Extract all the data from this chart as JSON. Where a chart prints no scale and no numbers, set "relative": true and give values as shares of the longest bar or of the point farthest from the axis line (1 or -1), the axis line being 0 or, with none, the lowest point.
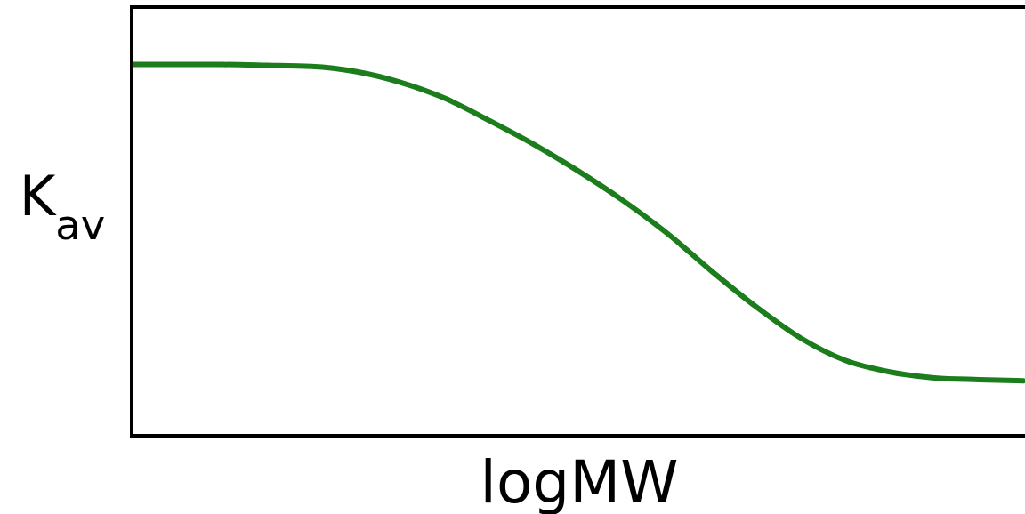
{
  "chart_data": {
    "type": "line",
    "relative": true,
    "xlabel": "logMW",
    "ylabel": "K$_{av}$",
    "categories": [
      null,
      null,
      null,
      null,
      null,
      null,
      null,
      null,
      null,
      null,
      null,
      null,
      null,
      null,
      null,
      null,
      null,
      null,
      null,
      null,
      null
    ],
    "series": [
      {
        "color": "#1b7d1b",
        "values": [
          1.0,
          1.0,
          1.0,
          0.998,
          0.995,
          0.981,
          0.952,
          0.909,
          0.849,
          0.785,
          0.713,
          0.634,
          0.545,
          0.443,
          0.347,
          0.263,
          0.203,
          0.172,
          0.156,
          0.151,
          0.148
        ]
      }
    ],
    "marker": "none",
    "line_style": "solid",
    "tick_labels": false
  }
}
